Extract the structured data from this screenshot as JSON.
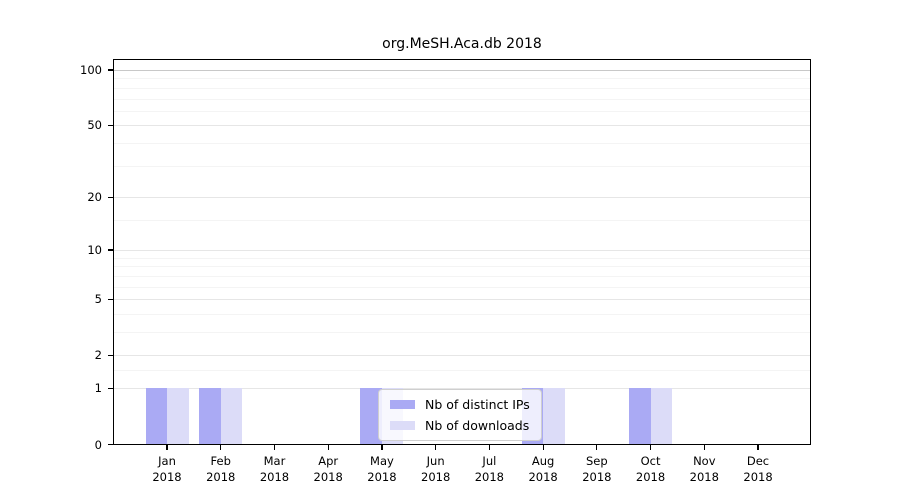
{
  "chart_data": {
    "type": "bar",
    "title": "org.MeSH.Aca.db 2018",
    "x_year": "2018",
    "categories": [
      "Jan",
      "Feb",
      "Mar",
      "Apr",
      "May",
      "Jun",
      "Jul",
      "Aug",
      "Sep",
      "Oct",
      "Nov",
      "Dec"
    ],
    "series": [
      {
        "name": "Nb of distinct IPs",
        "color": "#aaaaf4",
        "values": [
          1,
          1,
          0,
          0,
          1,
          0,
          0,
          1,
          0,
          1,
          0,
          0
        ]
      },
      {
        "name": "Nb of downloads",
        "color": "#dcdcf8",
        "values": [
          1,
          1,
          0,
          0,
          1,
          0,
          0,
          1,
          0,
          1,
          0,
          0
        ]
      }
    ],
    "ylim": [
      0,
      100
    ],
    "yscale": "log1p",
    "yticks": [
      0,
      1,
      2,
      5,
      10,
      20,
      50,
      100
    ],
    "minor_yticks": [
      1.5,
      3,
      4,
      6,
      7,
      8,
      9,
      15,
      30,
      40,
      60,
      70,
      80,
      90
    ],
    "grid": true,
    "legend_position": "lower center",
    "colors": {
      "axis": "#000000",
      "grid_major": "#e6e6e6",
      "grid_top": "#c8c8c8",
      "grid_minor": "#f4f4f4",
      "background": "#ffffff"
    }
  }
}
